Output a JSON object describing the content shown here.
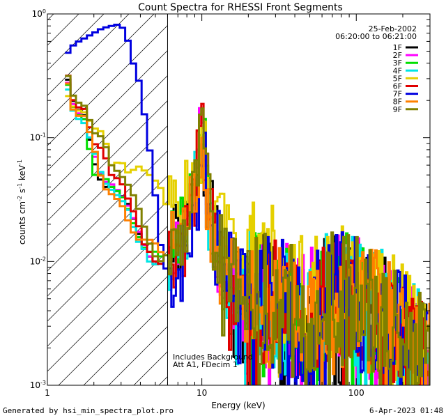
{
  "chart_data": {
    "type": "line",
    "title": "Count Spectra for RHESSI Front Segments",
    "xlabel": "Energy (keV)",
    "ylabel_parts": [
      "counts cm",
      "-2",
      " s",
      "-1",
      " keV",
      "-1"
    ],
    "x_scale": "log",
    "y_scale": "log",
    "xlim": [
      1.0,
      300.0
    ],
    "ylim": [
      0.001,
      1.0
    ],
    "x_major_ticks": [
      {
        "value": 1,
        "label": "1"
      },
      {
        "value": 10,
        "label": "10"
      },
      {
        "value": 100,
        "label": "100"
      }
    ],
    "y_major_ticks": [
      {
        "value": 0.001,
        "base": "10",
        "exp": "-3"
      },
      {
        "value": 0.01,
        "base": "10",
        "exp": "-2"
      },
      {
        "value": 0.1,
        "base": "10",
        "exp": "-1"
      },
      {
        "value": 1.0,
        "base": "10",
        "exp": "0"
      }
    ],
    "hatched_region": {
      "xmin": 1.0,
      "xmax": 6.0
    },
    "date": "25-Feb-2002",
    "time_range": "06:20:00 to 06:21:00",
    "annotations": [
      "Includes Background",
      "Att A1, FDecim 1"
    ],
    "series": [
      {
        "name": "1F",
        "color": "#000000",
        "seed": 1,
        "e": [
          1.3,
          1.5,
          1.75,
          2.0,
          2.3,
          2.6,
          3.0,
          3.4,
          3.8,
          4.2,
          4.6,
          5.0,
          5.4,
          5.8,
          6.2,
          7.0,
          8.0,
          9.0,
          10.0,
          10.4,
          11.0,
          12.0,
          14.0,
          17.0,
          20.0,
          25.0,
          30.0,
          40.0,
          50.0,
          60.0,
          70.0,
          80.0,
          90.0,
          100.0,
          120.0,
          150.0,
          200.0,
          250.0,
          290.0
        ],
        "v": [
          0.36,
          0.18,
          0.15,
          0.065,
          0.04,
          0.04,
          0.035,
          0.028,
          0.018,
          0.014,
          0.011,
          0.0095,
          0.0095,
          0.011,
          0.012,
          0.015,
          0.02,
          0.035,
          0.11,
          0.08,
          0.03,
          0.015,
          0.009,
          0.0065,
          0.006,
          0.005,
          0.0045,
          0.004,
          0.0035,
          0.0045,
          0.005,
          0.005,
          0.0048,
          0.0045,
          0.004,
          0.0035,
          0.0025,
          0.0018,
          0.0013
        ]
      },
      {
        "name": "2F",
        "color": "#ff00ff",
        "seed": 2,
        "e": [
          1.3,
          1.5,
          1.75,
          2.0,
          2.3,
          2.6,
          3.0,
          3.4,
          3.8,
          4.2,
          4.6,
          5.0,
          5.4,
          5.8,
          6.2,
          7.0,
          8.0,
          9.0,
          10.0,
          10.4,
          11.0,
          12.0,
          14.0,
          17.0,
          20.0,
          25.0,
          30.0,
          40.0,
          50.0,
          60.0,
          70.0,
          80.0,
          90.0,
          100.0,
          120.0,
          150.0,
          200.0,
          250.0,
          290.0
        ],
        "v": [
          0.34,
          0.17,
          0.14,
          0.075,
          0.045,
          0.042,
          0.035,
          0.027,
          0.019,
          0.014,
          0.011,
          0.01,
          0.01,
          0.011,
          0.012,
          0.015,
          0.02,
          0.035,
          0.1,
          0.075,
          0.03,
          0.015,
          0.009,
          0.0065,
          0.006,
          0.005,
          0.0045,
          0.004,
          0.0035,
          0.0045,
          0.005,
          0.005,
          0.0048,
          0.0045,
          0.004,
          0.0035,
          0.0025,
          0.0018,
          0.0013
        ]
      },
      {
        "name": "3F",
        "color": "#00e000",
        "seed": 3,
        "e": [
          1.3,
          1.5,
          1.75,
          2.0,
          2.3,
          2.6,
          3.0,
          3.4,
          3.8,
          4.2,
          4.6,
          5.0,
          5.4,
          5.8,
          6.2,
          7.0,
          8.0,
          9.0,
          10.0,
          10.4,
          11.0,
          12.0,
          14.0,
          17.0,
          20.0,
          25.0,
          30.0,
          40.0,
          50.0,
          60.0,
          70.0,
          80.0,
          90.0,
          100.0,
          120.0,
          150.0,
          200.0,
          250.0,
          290.0
        ],
        "v": [
          0.33,
          0.16,
          0.14,
          0.05,
          0.05,
          0.04,
          0.035,
          0.025,
          0.017,
          0.013,
          0.012,
          0.012,
          0.011,
          0.011,
          0.012,
          0.014,
          0.018,
          0.033,
          0.1,
          0.08,
          0.03,
          0.015,
          0.009,
          0.0065,
          0.006,
          0.005,
          0.0045,
          0.004,
          0.0035,
          0.0045,
          0.005,
          0.005,
          0.0048,
          0.0045,
          0.004,
          0.0035,
          0.0025,
          0.0018,
          0.0013
        ]
      },
      {
        "name": "4F",
        "color": "#00e5e5",
        "seed": 4,
        "e": [
          1.3,
          1.5,
          1.75,
          2.0,
          2.3,
          2.6,
          3.0,
          3.4,
          3.8,
          4.2,
          4.6,
          5.0,
          5.4,
          5.8,
          6.2,
          7.0,
          8.0,
          9.0,
          10.0,
          10.4,
          11.0,
          12.0,
          14.0,
          17.0,
          20.0,
          25.0,
          30.0,
          40.0,
          50.0,
          60.0,
          70.0,
          80.0,
          90.0,
          100.0,
          120.0,
          150.0,
          200.0,
          250.0,
          290.0
        ],
        "v": [
          0.3,
          0.15,
          0.13,
          0.08,
          0.045,
          0.038,
          0.032,
          0.025,
          0.015,
          0.013,
          0.01,
          0.0095,
          0.0095,
          0.011,
          0.012,
          0.014,
          0.018,
          0.034,
          0.1,
          0.07,
          0.03,
          0.015,
          0.009,
          0.0065,
          0.006,
          0.005,
          0.0045,
          0.004,
          0.0035,
          0.0045,
          0.005,
          0.005,
          0.0048,
          0.0045,
          0.004,
          0.0035,
          0.0025,
          0.0018,
          0.0013
        ]
      },
      {
        "name": "5F",
        "color": "#e5d000",
        "seed": 5,
        "e": [
          1.3,
          1.5,
          1.75,
          2.0,
          2.3,
          2.6,
          3.0,
          3.4,
          3.8,
          4.2,
          4.6,
          5.0,
          5.4,
          5.8,
          6.2,
          7.0,
          8.0,
          9.0,
          10.0,
          10.4,
          11.0,
          12.0,
          14.0,
          17.0,
          20.0,
          25.0,
          30.0,
          40.0,
          50.0,
          60.0,
          70.0,
          80.0,
          90.0,
          100.0,
          120.0,
          150.0,
          200.0,
          250.0,
          290.0
        ],
        "v": [
          0.24,
          0.17,
          0.16,
          0.12,
          0.11,
          0.06,
          0.065,
          0.05,
          0.06,
          0.055,
          0.05,
          0.045,
          0.04,
          0.03,
          0.026,
          0.028,
          0.03,
          0.045,
          0.1,
          0.09,
          0.04,
          0.025,
          0.016,
          0.012,
          0.01,
          0.009,
          0.008,
          0.0065,
          0.0055,
          0.0055,
          0.006,
          0.006,
          0.0055,
          0.005,
          0.0045,
          0.004,
          0.003,
          0.0022,
          0.0016
        ]
      },
      {
        "name": "6F",
        "color": "#e00000",
        "seed": 6,
        "e": [
          1.3,
          1.5,
          1.75,
          2.0,
          2.3,
          2.6,
          3.0,
          3.4,
          3.8,
          4.2,
          4.6,
          5.0,
          5.4,
          5.8,
          6.2,
          7.0,
          8.0,
          9.0,
          10.0,
          10.4,
          11.0,
          12.0,
          14.0,
          17.0,
          20.0,
          25.0,
          30.0,
          40.0,
          50.0,
          60.0,
          70.0,
          80.0,
          90.0,
          100.0,
          120.0,
          150.0,
          200.0,
          250.0,
          290.0
        ],
        "v": [
          0.4,
          0.18,
          0.17,
          0.09,
          0.08,
          0.05,
          0.045,
          0.03,
          0.022,
          0.014,
          0.012,
          0.01,
          0.0095,
          0.011,
          0.012,
          0.014,
          0.018,
          0.034,
          0.1,
          0.075,
          0.03,
          0.015,
          0.009,
          0.0065,
          0.006,
          0.005,
          0.0045,
          0.004,
          0.0035,
          0.0045,
          0.005,
          0.005,
          0.0048,
          0.0045,
          0.004,
          0.0035,
          0.0025,
          0.0018,
          0.0013
        ]
      },
      {
        "name": "7F",
        "color": "#0000e0",
        "seed": 7,
        "e": [
          1.3,
          1.45,
          1.6,
          1.8,
          2.0,
          2.2,
          2.4,
          2.6,
          2.8,
          3.0,
          3.2,
          3.4,
          3.6,
          3.8,
          4.0,
          4.3,
          4.6,
          4.9,
          5.2,
          5.5,
          5.8,
          6.2,
          7.0,
          8.0,
          9.0,
          9.5,
          10.0,
          10.4,
          11.0,
          12.0,
          14.0,
          17.0,
          20.0,
          25.0,
          30.0,
          40.0,
          50.0,
          60.0,
          70.0,
          80.0,
          90.0,
          100.0,
          120.0,
          150.0,
          200.0,
          250.0,
          290.0
        ],
        "v": [
          0.45,
          0.55,
          0.6,
          0.65,
          0.7,
          0.75,
          0.78,
          0.8,
          0.82,
          0.8,
          0.72,
          0.55,
          0.4,
          0.35,
          0.25,
          0.14,
          0.08,
          0.045,
          0.02,
          0.012,
          0.009,
          0.008,
          0.008,
          0.012,
          0.02,
          0.04,
          0.09,
          0.09,
          0.03,
          0.015,
          0.009,
          0.0065,
          0.006,
          0.005,
          0.0045,
          0.004,
          0.0035,
          0.0045,
          0.005,
          0.005,
          0.0048,
          0.0045,
          0.004,
          0.0035,
          0.0025,
          0.0018,
          0.0013
        ]
      },
      {
        "name": "8F",
        "color": "#ff8000",
        "seed": 8,
        "e": [
          1.3,
          1.5,
          1.75,
          2.0,
          2.3,
          2.6,
          3.0,
          3.4,
          3.8,
          4.2,
          4.6,
          5.0,
          5.4,
          5.8,
          6.2,
          7.0,
          8.0,
          9.0,
          10.0,
          10.4,
          11.0,
          12.0,
          14.0,
          17.0,
          20.0,
          25.0,
          30.0,
          40.0,
          50.0,
          60.0,
          70.0,
          80.0,
          90.0,
          100.0,
          120.0,
          150.0,
          200.0,
          250.0,
          290.0
        ],
        "v": [
          0.35,
          0.15,
          0.15,
          0.085,
          0.04,
          0.035,
          0.03,
          0.02,
          0.015,
          0.015,
          0.015,
          0.014,
          0.012,
          0.011,
          0.012,
          0.015,
          0.02,
          0.035,
          0.1,
          0.075,
          0.03,
          0.015,
          0.009,
          0.0065,
          0.006,
          0.005,
          0.0045,
          0.004,
          0.0035,
          0.0045,
          0.005,
          0.005,
          0.0048,
          0.0045,
          0.004,
          0.0035,
          0.0025,
          0.0018,
          0.0013
        ]
      },
      {
        "name": "9F",
        "color": "#808000",
        "seed": 9,
        "e": [
          1.3,
          1.5,
          1.75,
          2.0,
          2.3,
          2.6,
          3.0,
          3.4,
          3.8,
          4.2,
          4.6,
          5.0,
          5.4,
          5.8,
          6.2,
          7.0,
          8.0,
          9.0,
          10.0,
          10.4,
          11.0,
          12.0,
          14.0,
          17.0,
          20.0,
          25.0,
          30.0,
          40.0,
          50.0,
          60.0,
          70.0,
          80.0,
          90.0,
          100.0,
          120.0,
          150.0,
          200.0,
          250.0,
          290.0
        ],
        "v": [
          0.38,
          0.2,
          0.18,
          0.11,
          0.1,
          0.06,
          0.05,
          0.04,
          0.03,
          0.02,
          0.014,
          0.011,
          0.01,
          0.011,
          0.012,
          0.015,
          0.02,
          0.036,
          0.105,
          0.08,
          0.03,
          0.015,
          0.009,
          0.0065,
          0.006,
          0.005,
          0.0045,
          0.004,
          0.0035,
          0.0045,
          0.005,
          0.005,
          0.0048,
          0.0045,
          0.004,
          0.0035,
          0.0025,
          0.0018,
          0.0013
        ]
      }
    ]
  },
  "footer": {
    "generated_by": "Generated by hsi_min_spectra_plot.pro",
    "timestamp": "6-Apr-2023 01:48"
  }
}
